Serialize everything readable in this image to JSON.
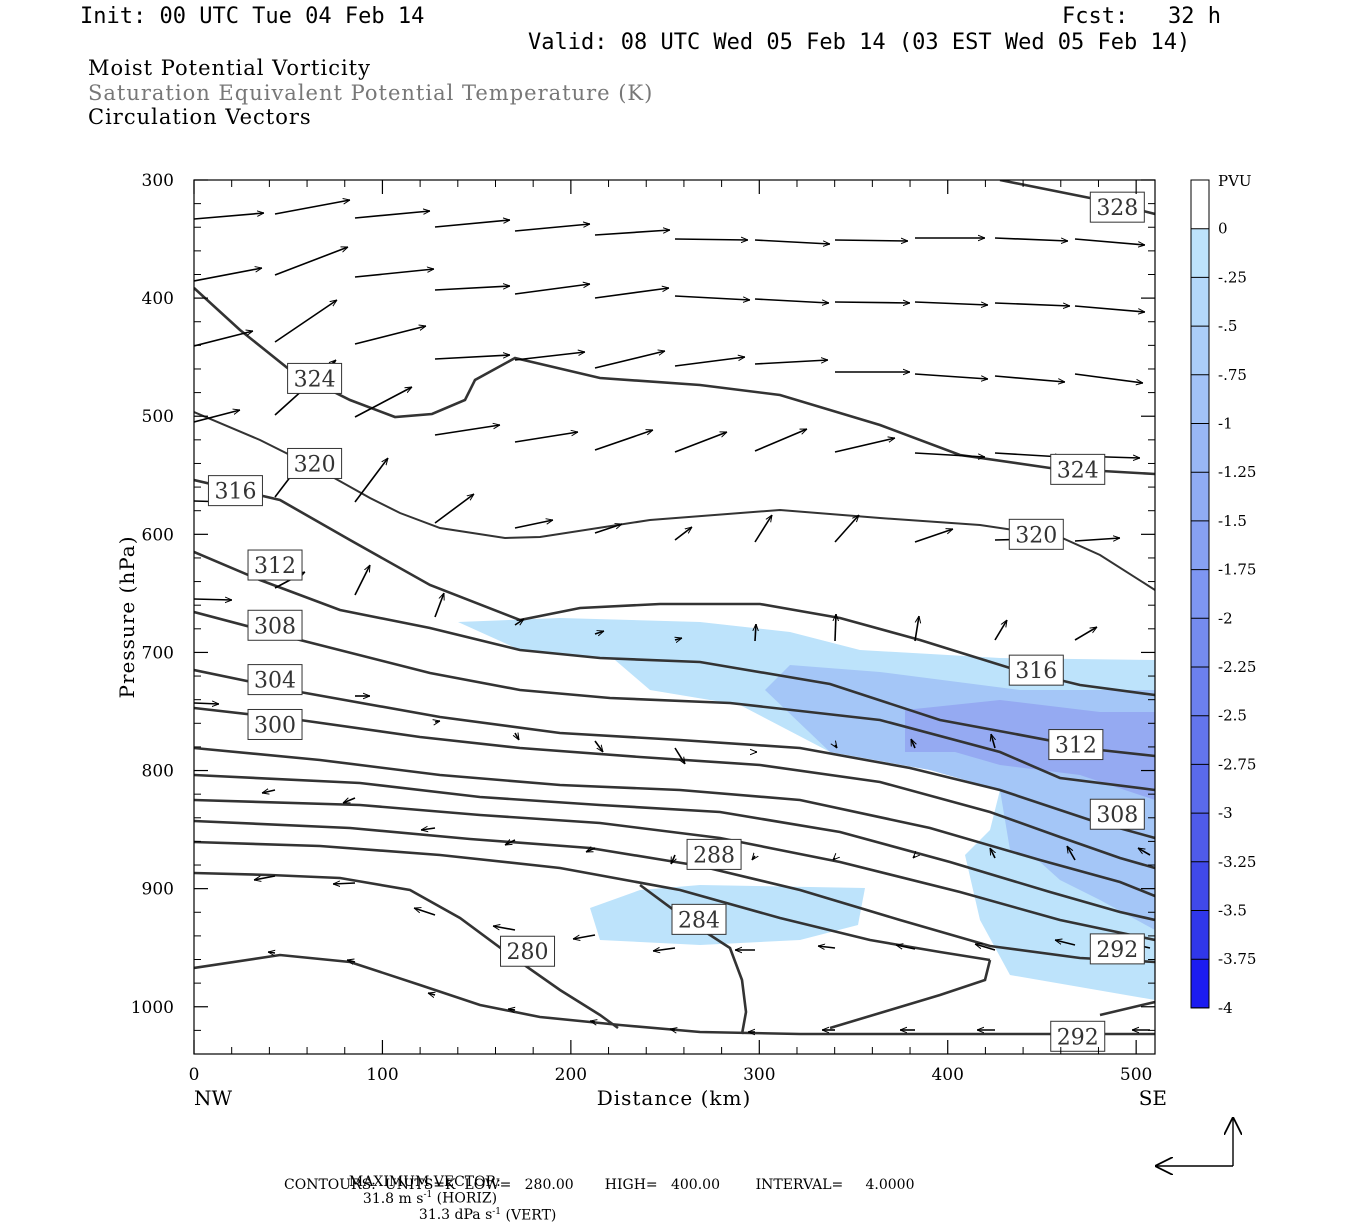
{
  "header": {
    "init": "Init: 00 UTC Tue 04 Feb 14",
    "fcst": "Fcst:   32 h",
    "valid": "Valid: 08 UTC Wed 05 Feb 14 (03 EST Wed 05 Feb 14)"
  },
  "fields": {
    "primary": "Moist Potential Vorticity",
    "secondary": "Saturation Equivalent Potential Temperature (K)",
    "vectors": "Circulation Vectors"
  },
  "colors": {
    "text_secondary": "#777777",
    "contour": "#333333",
    "shade_light": "#bde3fb",
    "shade_mid": "#a4c6f7",
    "shade_dark": "#95aaf2"
  },
  "chart_data": {
    "type": "contour-cross-section",
    "xlabel": "Distance (km)",
    "ylabel": "Pressure (hPa)",
    "xlim": [
      0,
      510
    ],
    "ylim": [
      1040,
      300
    ],
    "x_ticks": [
      0,
      100,
      200,
      300,
      400,
      500
    ],
    "y_ticks": [
      300,
      400,
      500,
      600,
      700,
      800,
      900,
      1000
    ],
    "x_end_labels": [
      "NW",
      "SE"
    ],
    "colorbar": {
      "unit": "PVU",
      "labels": [
        "0",
        "-.25",
        "-.5",
        "-.75",
        "-1",
        "-1.25",
        "-1.5",
        "-1.75",
        "-2",
        "-2.25",
        "-2.5",
        "-2.75",
        "-3",
        "-3.25",
        "-3.5",
        "-3.75",
        "-4"
      ],
      "colors": [
        "#ffffff",
        "#bde3fb",
        "#b4d8fa",
        "#abcdf8",
        "#a2c2f7",
        "#99b7f5",
        "#90acf4",
        "#87a1f2",
        "#7e96f1",
        "#758bef",
        "#6c80ee",
        "#6375ec",
        "#5a6aeb",
        "#4f5be9",
        "#4049e9",
        "#3037ea",
        "#1c1cf0"
      ]
    },
    "contours": {
      "units": "K",
      "low": 280.0,
      "high": 400.0,
      "interval": 4.0,
      "labels": [
        {
          "value": 328,
          "x": 490,
          "p": 323
        },
        {
          "value": 324,
          "x": 64,
          "p": 468
        },
        {
          "value": 324,
          "x": 469,
          "p": 545
        },
        {
          "value": 320,
          "x": 64,
          "p": 540
        },
        {
          "value": 320,
          "x": 447,
          "p": 600
        },
        {
          "value": 316,
          "x": 22,
          "p": 563
        },
        {
          "value": 316,
          "x": 447,
          "p": 715
        },
        {
          "value": 312,
          "x": 43,
          "p": 626
        },
        {
          "value": 312,
          "x": 468,
          "p": 778
        },
        {
          "value": 308,
          "x": 43,
          "p": 677
        },
        {
          "value": 308,
          "x": 490,
          "p": 837
        },
        {
          "value": 304,
          "x": 43,
          "p": 723
        },
        {
          "value": 300,
          "x": 43,
          "p": 761
        },
        {
          "value": 288,
          "x": 276,
          "p": 871
        },
        {
          "value": 284,
          "x": 268,
          "p": 926
        },
        {
          "value": 280,
          "x": 177,
          "p": 953
        },
        {
          "value": 292,
          "x": 490,
          "p": 951
        },
        {
          "value": 292,
          "x": 469,
          "p": 1025
        }
      ]
    },
    "footer": {
      "max_vector_label": "MAXIMUM VECTOR:",
      "max_horiz": "31.8 m s",
      "horiz_note": " (HORIZ)",
      "max_vert": "31.3 dPa s",
      "vert_note": " (VERT)",
      "exponent": "-1",
      "contours_line": "CONTOURS:  UNITS=K  LOW=   280.00       HIGH=   400.00        INTERVAL=     4.0000"
    }
  }
}
